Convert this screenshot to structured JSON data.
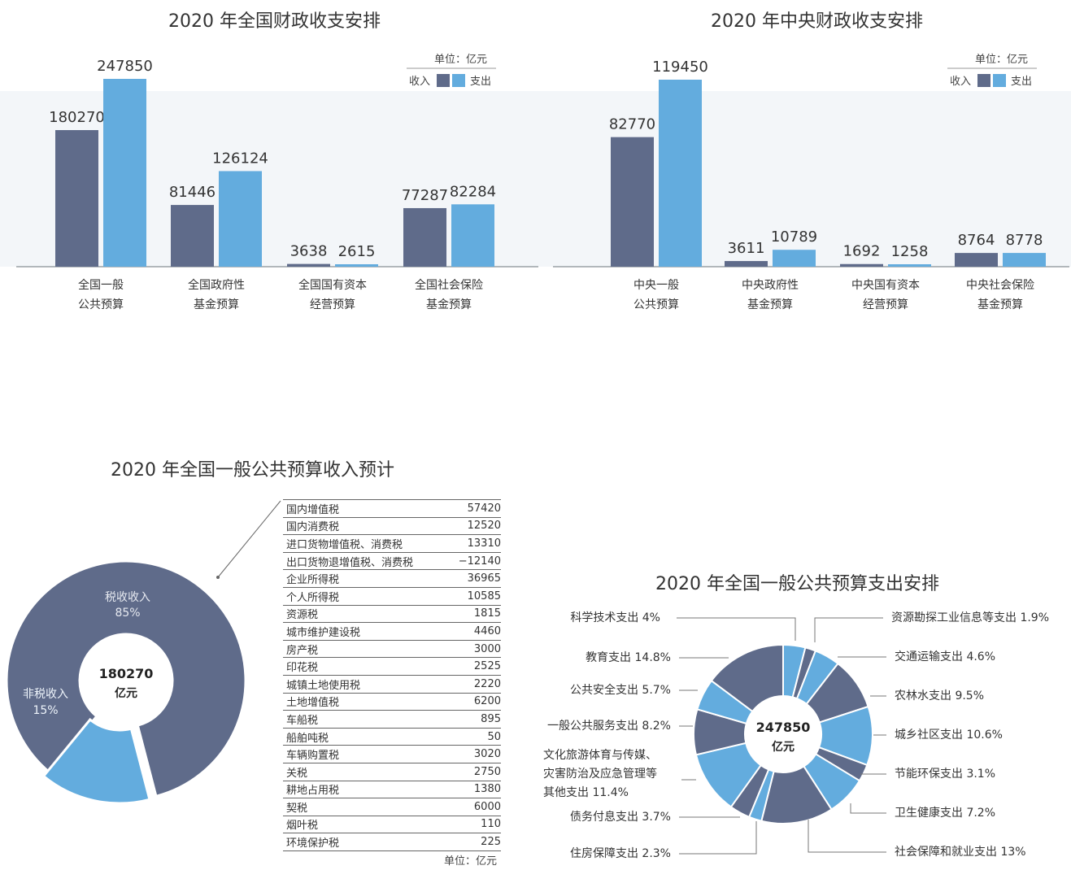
{
  "colors": {
    "income": "#5f6b8a",
    "expense": "#63acde"
  },
  "chart_data": [
    {
      "type": "bar",
      "title": "2020 年全国财政收支安排",
      "unit": "单位：亿元",
      "legend": [
        "收入",
        "支出"
      ],
      "categories": [
        [
          "全国一般",
          "公共预算"
        ],
        [
          "全国政府性",
          "基金预算"
        ],
        [
          "全国国有资本",
          "经营预算"
        ],
        [
          "全国社会保险",
          "基金预算"
        ]
      ],
      "series": [
        {
          "name": "收入",
          "values": [
            180270,
            81446,
            3638,
            77287
          ]
        },
        {
          "name": "支出",
          "values": [
            247850,
            126124,
            2615,
            82284
          ]
        }
      ],
      "ylim": [
        0,
        247850
      ]
    },
    {
      "type": "bar",
      "title": "2020 年中央财政收支安排",
      "unit": "单位：亿元",
      "legend": [
        "收入",
        "支出"
      ],
      "categories": [
        [
          "中央一般",
          "公共预算"
        ],
        [
          "中央政府性",
          "基金预算"
        ],
        [
          "中央国有资本",
          "经营预算"
        ],
        [
          "中央社会保险",
          "基金预算"
        ]
      ],
      "series": [
        {
          "name": "收入",
          "values": [
            82770,
            3611,
            1692,
            8764
          ]
        },
        {
          "name": "支出",
          "values": [
            119450,
            10789,
            1258,
            8778
          ]
        }
      ],
      "ylim": [
        0,
        119450
      ]
    },
    {
      "type": "pie",
      "title": "2020 年全国一般公共预算收入预计",
      "center_value": "180270",
      "center_unit": "亿元",
      "slices": [
        {
          "label": "税收收入",
          "pct_label": "85%",
          "value": 85
        },
        {
          "label": "非税收入",
          "pct_label": "15%",
          "value": 15
        }
      ]
    },
    {
      "type": "table",
      "unit": "单位：亿元",
      "rows": [
        [
          "国内增值税",
          "57420"
        ],
        [
          "国内消费税",
          "12520"
        ],
        [
          "进口货物增值税、消费税",
          "13310"
        ],
        [
          "出口货物退增值税、消费税",
          "−12140"
        ],
        [
          "企业所得税",
          "36965"
        ],
        [
          "个人所得税",
          "10585"
        ],
        [
          "资源税",
          "1815"
        ],
        [
          "城市维护建设税",
          "4460"
        ],
        [
          "房产税",
          "3000"
        ],
        [
          "印花税",
          "2525"
        ],
        [
          "城镇土地使用税",
          "2220"
        ],
        [
          "土地增值税",
          "6200"
        ],
        [
          "车船税",
          "895"
        ],
        [
          "船舶吨税",
          "50"
        ],
        [
          "车辆购置税",
          "3020"
        ],
        [
          "关税",
          "2750"
        ],
        [
          "耕地占用税",
          "1380"
        ],
        [
          "契税",
          "6000"
        ],
        [
          "烟叶税",
          "110"
        ],
        [
          "环境保护税",
          "225"
        ]
      ]
    },
    {
      "type": "pie",
      "title": "2020 年全国一般公共预算支出安排",
      "center_value": "247850",
      "center_unit": "亿元",
      "slices": [
        {
          "label": "科学技术支出 4%",
          "value": 4
        },
        {
          "label": "资源勘探工业信息等支出 1.9%",
          "value": 1.9
        },
        {
          "label": "交通运输支出 4.6%",
          "value": 4.6
        },
        {
          "label": "农林水支出 9.5%",
          "value": 9.5
        },
        {
          "label": "城乡社区支出 10.6%",
          "value": 10.6
        },
        {
          "label": "节能环保支出 3.1%",
          "value": 3.1
        },
        {
          "label": "卫生健康支出 7.2%",
          "value": 7.2
        },
        {
          "label": "社会保障和就业支出 13%",
          "value": 13
        },
        {
          "label": "住房保障支出 2.3%",
          "value": 2.3
        },
        {
          "label": "债务付息支出 3.7%",
          "value": 3.7
        },
        {
          "label": "文化旅游体育与传媒、灾害防治及应急管理等其他支出 11.4%",
          "lines": [
            "文化旅游体育与传媒、",
            "灾害防治及应急管理等",
            "其他支出 11.4%"
          ],
          "value": 11.4
        },
        {
          "label": "一般公共服务支出 8.2%",
          "value": 8.2
        },
        {
          "label": "公共安全支出 5.7%",
          "value": 5.7
        },
        {
          "label": "教育支出 14.8%",
          "value": 14.8
        }
      ]
    }
  ]
}
